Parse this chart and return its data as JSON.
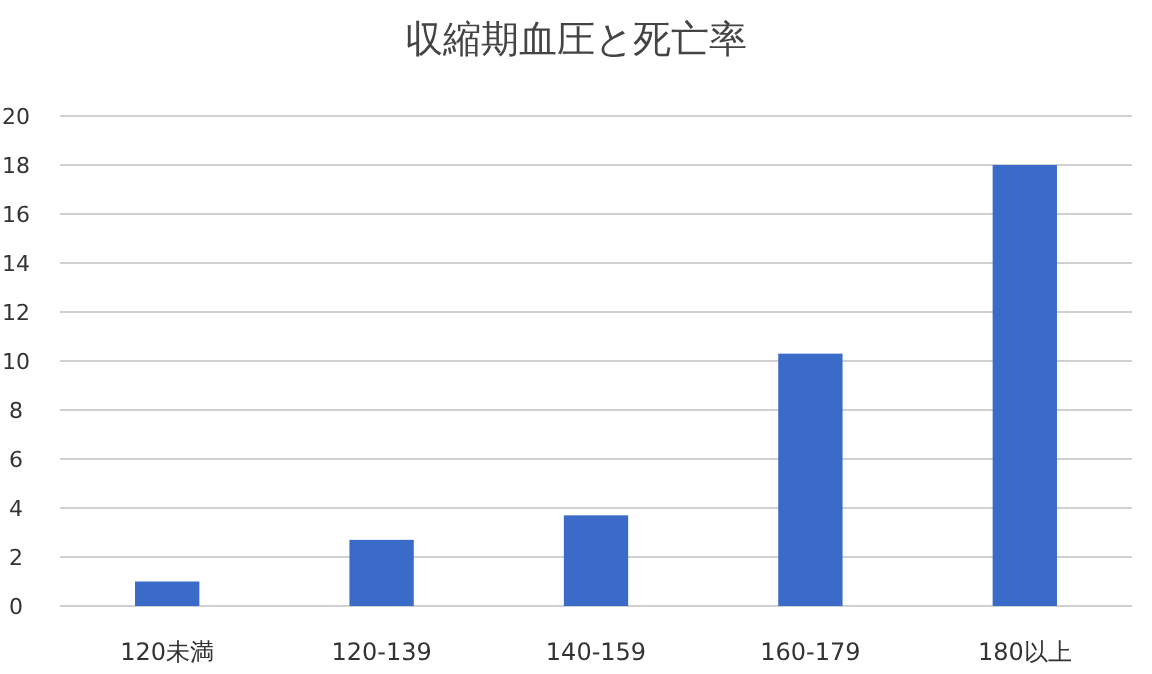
{
  "chart_data": {
    "type": "bar",
    "title": "収縮期血圧と死亡率",
    "categories": [
      "120未満",
      "120-139",
      "140-159",
      "160-179",
      "180以上"
    ],
    "values": [
      1.0,
      2.7,
      3.7,
      10.3,
      18.0
    ],
    "color": "#3a6bc9",
    "ylim": [
      0,
      20
    ],
    "yticks": [
      0,
      2,
      4,
      6,
      8,
      10,
      12,
      14,
      16,
      18,
      20
    ],
    "grid": "y"
  }
}
